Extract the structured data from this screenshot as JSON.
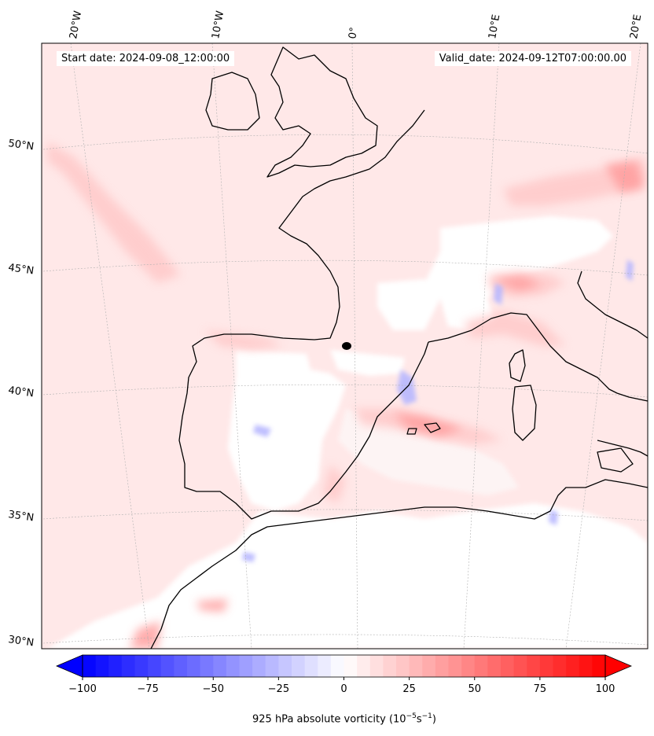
{
  "header": {
    "start_date": "Start date: 2024-09-08_12:00:00",
    "valid_date": "Valid_date: 2024-09-12T07:00:00.00"
  },
  "axes": {
    "lon_labels": [
      "20°W",
      "10°W",
      "0°",
      "10°E",
      "20°E"
    ],
    "lat_labels": [
      "50°N",
      "45°N",
      "40°N",
      "35°N",
      "30°N"
    ]
  },
  "colorbar": {
    "label_prefix": "925 hPa absolute vorticity (10",
    "label_exp1": "−5",
    "label_mid": "s",
    "label_exp2": "−1",
    "label_suffix": ")",
    "ticks": [
      "−100",
      "−75",
      "−50",
      "−25",
      "0",
      "25",
      "50",
      "75",
      "100"
    ],
    "min": -100,
    "max": 100,
    "levels": 40,
    "colormap": "bwr",
    "extend": "both"
  },
  "chart_data": {
    "type": "heatmap",
    "variable": "925 hPa absolute vorticity",
    "units": "10^-5 s^-1",
    "projection": "conic",
    "grid": true,
    "colors": {
      "negative": "#0000ff",
      "zero": "#ffffff",
      "positive": "#ff0000",
      "coast": "#000000"
    }
  }
}
